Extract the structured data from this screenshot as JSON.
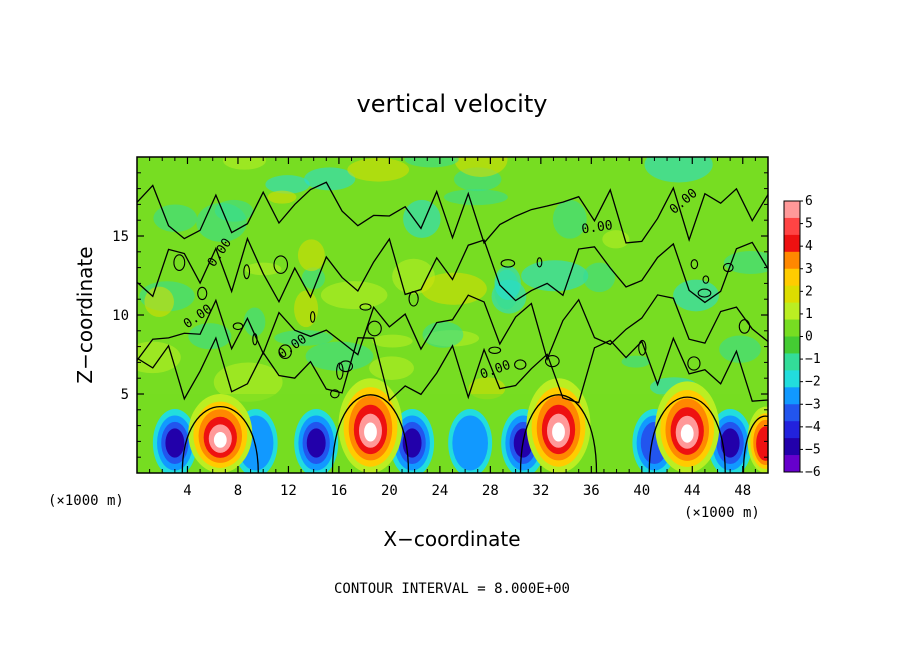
{
  "chart_data": {
    "type": "heatmap",
    "title": "vertical velocity",
    "xlabel": "X−coordinate",
    "ylabel": "Z−coordinate",
    "x_ticks": [
      "4",
      "8",
      "12",
      "16",
      "20",
      "24",
      "28",
      "32",
      "36",
      "40",
      "44",
      "48"
    ],
    "y_ticks": [
      "5",
      "10",
      "15"
    ],
    "x_unit": "(×1000 m)",
    "y_unit": "(×1000 m)",
    "xlim": [
      0,
      50000
    ],
    "ylim": [
      0,
      20000
    ],
    "contour_interval_text": "CONTOUR INTERVAL = 8.000E+00",
    "contour_labels": [
      "0.00",
      "0.00",
      "0.00",
      "0.00",
      "0.00",
      "0.00"
    ],
    "colorbar": {
      "ticks": [
        "6",
        "5",
        "4",
        "3",
        "2",
        "1",
        "0",
        "−1",
        "−2",
        "−3",
        "−4",
        "−5",
        "−6"
      ],
      "range": [
        -6,
        6
      ],
      "colors": [
        "#ff9999",
        "#ff4444",
        "#ee1111",
        "#ff8800",
        "#ffcc00",
        "#dddd00",
        "#bbee22",
        "#77dd22",
        "#44cc33",
        "#33dd99",
        "#22dddd",
        "#1199ff",
        "#2255ee",
        "#2222dd",
        "#2200aa",
        "#6600cc"
      ]
    },
    "updrafts": [
      {
        "x": 6600,
        "z_top": 5000,
        "peak": 6
      },
      {
        "x": 18500,
        "z_top": 6000,
        "peak": 6
      },
      {
        "x": 33400,
        "z_top": 6000,
        "peak": 6
      },
      {
        "x": 43600,
        "z_top": 5800,
        "peak": 6
      },
      {
        "x": 49800,
        "z_top": 4200,
        "peak": 4
      }
    ],
    "downdrafts": [
      {
        "x": 3000,
        "peak": -5
      },
      {
        "x": 9400,
        "peak": -3
      },
      {
        "x": 14200,
        "peak": -5
      },
      {
        "x": 21800,
        "peak": -5
      },
      {
        "x": 26400,
        "peak": -3
      },
      {
        "x": 30600,
        "peak": -5
      },
      {
        "x": 41000,
        "peak": -4
      },
      {
        "x": 47000,
        "peak": -5
      }
    ]
  }
}
